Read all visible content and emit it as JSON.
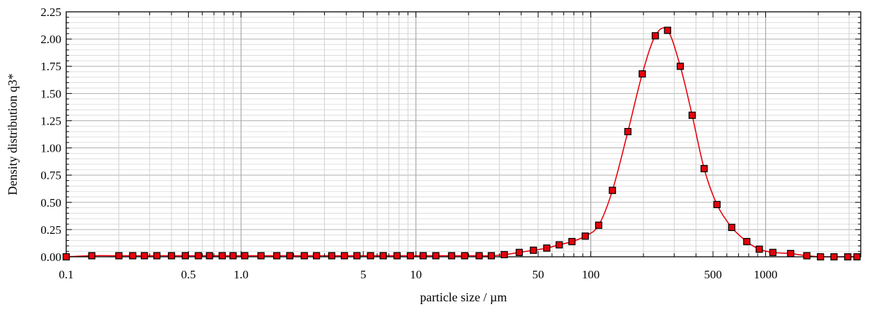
{
  "chart_data": {
    "type": "scatter",
    "title": "",
    "xlabel": "particle size / µm",
    "ylabel": "Density distribution q3*",
    "xscale": "log",
    "xlim": [
      0.1,
      3500
    ],
    "ylim": [
      0,
      2.25
    ],
    "grid": true,
    "legend": "none",
    "x_ticks": [
      {
        "value": 0.1,
        "label": "0.1"
      },
      {
        "value": 0.5,
        "label": "0.5"
      },
      {
        "value": 1,
        "label": "1.0"
      },
      {
        "value": 5,
        "label": "5"
      },
      {
        "value": 10,
        "label": "10"
      },
      {
        "value": 50,
        "label": "50"
      },
      {
        "value": 100,
        "label": "100"
      },
      {
        "value": 500,
        "label": "500"
      },
      {
        "value": 1000,
        "label": "1000"
      }
    ],
    "y_ticks": [
      {
        "value": 0,
        "label": "0.00"
      },
      {
        "value": 0.25,
        "label": "0.25"
      },
      {
        "value": 0.5,
        "label": "0.50"
      },
      {
        "value": 0.75,
        "label": "0.75"
      },
      {
        "value": 1.0,
        "label": "1.00"
      },
      {
        "value": 1.25,
        "label": "1.25"
      },
      {
        "value": 1.5,
        "label": "1.50"
      },
      {
        "value": 1.75,
        "label": "1.75"
      },
      {
        "value": 2.0,
        "label": "2.00"
      },
      {
        "value": 2.25,
        "label": "2.25"
      }
    ],
    "series": [
      {
        "marker": "square",
        "marker_color": "#e8000b",
        "line_color": "#e8000b",
        "points": [
          [
            0.1,
            0.0
          ],
          [
            0.14,
            0.01
          ],
          [
            0.2,
            0.01
          ],
          [
            0.24,
            0.01
          ],
          [
            0.28,
            0.01
          ],
          [
            0.33,
            0.01
          ],
          [
            0.4,
            0.01
          ],
          [
            0.48,
            0.01
          ],
          [
            0.57,
            0.01
          ],
          [
            0.66,
            0.01
          ],
          [
            0.78,
            0.01
          ],
          [
            0.9,
            0.01
          ],
          [
            1.05,
            0.01
          ],
          [
            1.3,
            0.01
          ],
          [
            1.6,
            0.01
          ],
          [
            1.9,
            0.01
          ],
          [
            2.3,
            0.01
          ],
          [
            2.7,
            0.01
          ],
          [
            3.3,
            0.01
          ],
          [
            3.9,
            0.01
          ],
          [
            4.6,
            0.01
          ],
          [
            5.5,
            0.01
          ],
          [
            6.5,
            0.01
          ],
          [
            7.8,
            0.01
          ],
          [
            9.3,
            0.01
          ],
          [
            11,
            0.01
          ],
          [
            13,
            0.01
          ],
          [
            16,
            0.01
          ],
          [
            19,
            0.01
          ],
          [
            23,
            0.01
          ],
          [
            27,
            0.01
          ],
          [
            32,
            0.02
          ],
          [
            39,
            0.04
          ],
          [
            47,
            0.06
          ],
          [
            56,
            0.08
          ],
          [
            66,
            0.11
          ],
          [
            78,
            0.14
          ],
          [
            93,
            0.19
          ],
          [
            111,
            0.29
          ],
          [
            133,
            0.61
          ],
          [
            163,
            1.15
          ],
          [
            197,
            1.68
          ],
          [
            234,
            2.03
          ],
          [
            275,
            2.08
          ],
          [
            325,
            1.75
          ],
          [
            380,
            1.3
          ],
          [
            445,
            0.81
          ],
          [
            527,
            0.48
          ],
          [
            640,
            0.27
          ],
          [
            780,
            0.14
          ],
          [
            920,
            0.07
          ],
          [
            1100,
            0.04
          ],
          [
            1390,
            0.03
          ],
          [
            1720,
            0.01
          ],
          [
            2060,
            0.0
          ],
          [
            2460,
            0.0
          ],
          [
            2950,
            0.0
          ],
          [
            3330,
            0.0
          ]
        ]
      }
    ]
  }
}
